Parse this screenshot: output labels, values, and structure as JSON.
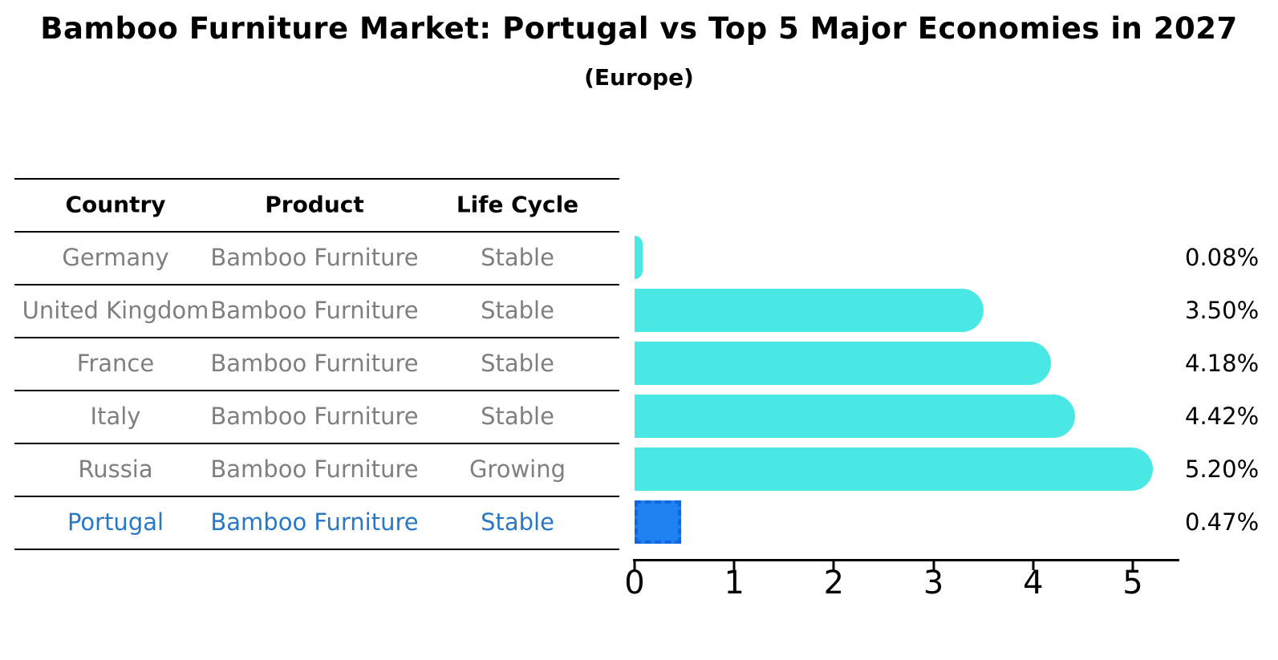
{
  "title": "Bamboo Furniture Market: Portugal vs Top 5 Major Economies in 2027",
  "subtitle": "(Europe)",
  "table": {
    "columns": [
      "Country",
      "Product",
      "Life Cycle"
    ]
  },
  "chart_data": {
    "type": "bar",
    "orientation": "horizontal",
    "title": "Bamboo Furniture Market: Portugal vs Top 5 Major Economies in 2027 (Europe)",
    "xlabel": "",
    "ylabel": "",
    "xlim": [
      0,
      5.46
    ],
    "x_ticks": [
      0,
      1,
      2,
      3,
      4,
      5
    ],
    "grid": false,
    "legend": "none",
    "categories": [
      "Germany",
      "United Kingdom",
      "France",
      "Italy",
      "Russia",
      "Portugal"
    ],
    "values": [
      0.08,
      3.5,
      4.18,
      4.42,
      5.2,
      0.47
    ],
    "rows": [
      {
        "country": "Germany",
        "product": "Bamboo Furniture",
        "life_cycle": "Stable",
        "value": 0.08,
        "value_label": "0.08%",
        "highlight": false
      },
      {
        "country": "United Kingdom",
        "product": "Bamboo Furniture",
        "life_cycle": "Stable",
        "value": 3.5,
        "value_label": "3.50%",
        "highlight": false
      },
      {
        "country": "France",
        "product": "Bamboo Furniture",
        "life_cycle": "Stable",
        "value": 4.18,
        "value_label": "4.18%",
        "highlight": false
      },
      {
        "country": "Italy",
        "product": "Bamboo Furniture",
        "life_cycle": "Stable",
        "value": 4.42,
        "value_label": "4.42%",
        "highlight": false
      },
      {
        "country": "Russia",
        "product": "Bamboo Furniture",
        "life_cycle": "Growing",
        "value": 5.2,
        "value_label": "5.20%",
        "highlight": false
      },
      {
        "country": "Portugal",
        "product": "Bamboo Furniture",
        "life_cycle": "Stable",
        "value": 0.47,
        "value_label": "0.47%",
        "highlight": true
      }
    ]
  },
  "colors": {
    "bar": "#4AE8E4",
    "highlight_bar": "#1E83F0",
    "highlight_bar_border": "#1366DE",
    "row_text": "#7F7F7F",
    "highlight_text": "#2878C8",
    "axis": "#000000",
    "title_text": "#000000"
  }
}
